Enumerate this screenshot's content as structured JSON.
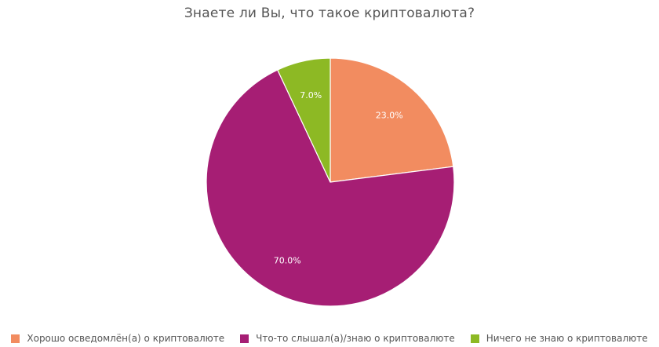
{
  "chart_data": {
    "type": "pie",
    "title": "Знаете ли Вы, что такое криптовалюта?",
    "categories": [
      "Хорошо осведомлён(а) о криптовалюте",
      "Что-то слышал(а)/знаю о криптовалюте",
      "Ничего не знаю о криптовалюте"
    ],
    "values": [
      23.0,
      70.0,
      7.0
    ],
    "labels": [
      "23.0%",
      "70.0%",
      "7.0%"
    ],
    "colors": [
      "#F28C60",
      "#A61E74",
      "#8DB924"
    ],
    "legend_position": "bottom",
    "start_angle": "12 o'clock, clockwise"
  },
  "title": "Знаете ли Вы, что такое криптовалюта?",
  "legend": {
    "items": [
      {
        "label": "Хорошо осведомлён(а) о криптовалюте",
        "color": "#F28C60"
      },
      {
        "label": "Что-то слышал(а)/знаю о криптовалюте",
        "color": "#A61E74"
      },
      {
        "label": "Ничего не знаю о криптовалюте",
        "color": "#8DB924"
      }
    ]
  }
}
